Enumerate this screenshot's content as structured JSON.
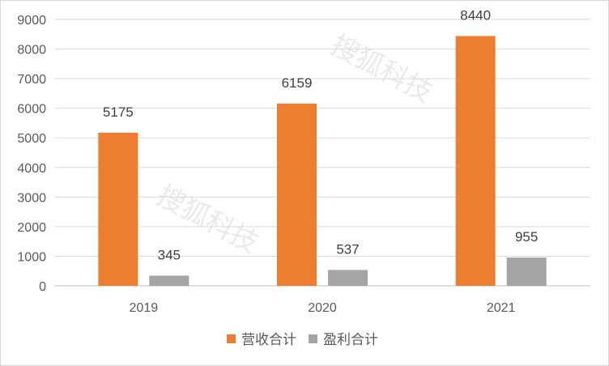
{
  "chart_data": {
    "type": "bar",
    "categories": [
      "2019",
      "2020",
      "2021"
    ],
    "series": [
      {
        "name": "营收合计",
        "color": "#ed7d31",
        "values": [
          5175,
          6159,
          8440
        ]
      },
      {
        "name": "盈利合计",
        "color": "#a5a5a5",
        "values": [
          345,
          537,
          955
        ]
      }
    ],
    "yticks": [
      "0",
      "1000",
      "2000",
      "3000",
      "4000",
      "5000",
      "6000",
      "7000",
      "8000",
      "9000"
    ],
    "ylim": [
      0,
      9000
    ],
    "grid": true,
    "legend_position": "bottom",
    "title": "",
    "xlabel": "",
    "ylabel": ""
  },
  "watermarks": [
    "搜狐科技",
    "搜狐科技"
  ]
}
